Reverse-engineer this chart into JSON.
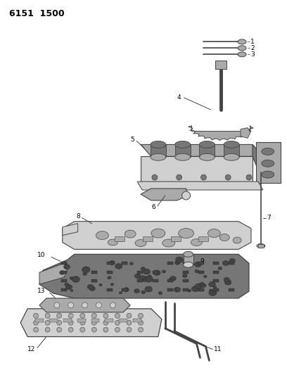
{
  "title": "6151  1500",
  "background_color": "#ffffff",
  "line_color": "#444444",
  "part_fill_light": "#d0d0d0",
  "part_fill_mid": "#aaaaaa",
  "part_fill_dark": "#777777",
  "part_fill_vdark": "#444444"
}
